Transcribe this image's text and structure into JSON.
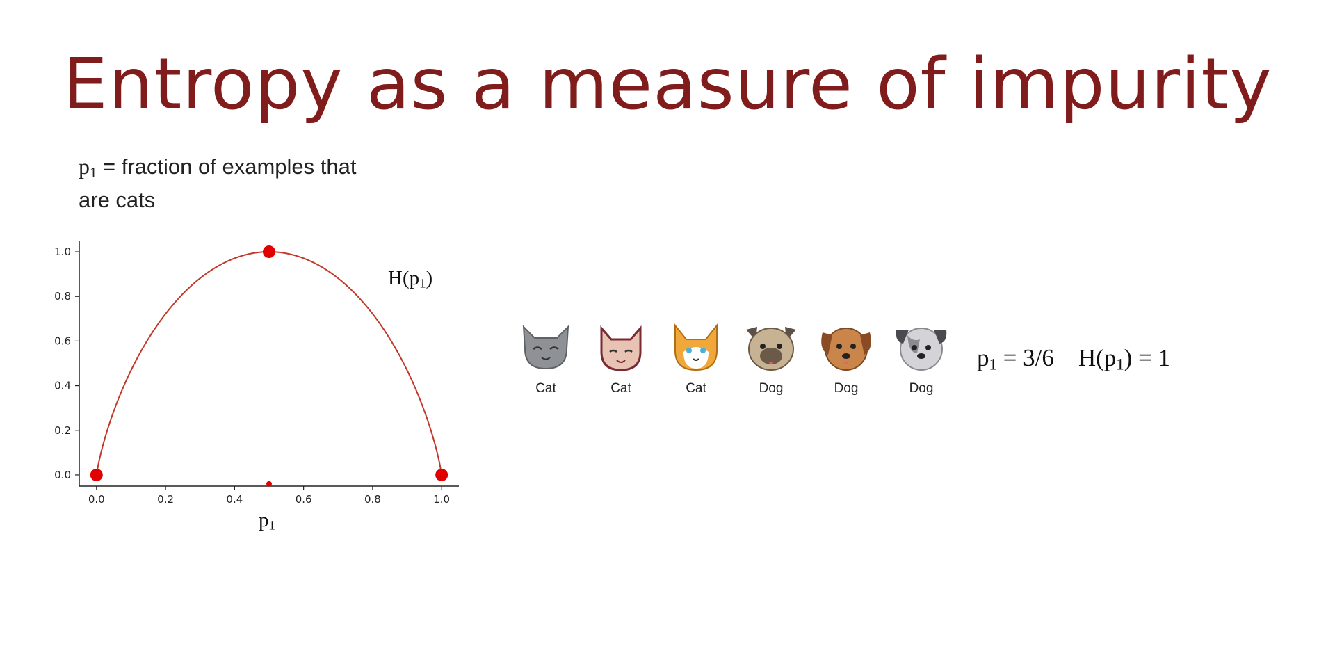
{
  "slide": {
    "title": "Entropy as a measure of impurity",
    "definition_symbol": "p",
    "definition_sub": "1",
    "definition_line1": "= fraction of examples that",
    "definition_line2": "are cats"
  },
  "chart_data": {
    "type": "line",
    "series": [
      {
        "x": [
          0.0,
          0.05,
          0.1,
          0.15,
          0.2,
          0.25,
          0.3,
          0.35,
          0.4,
          0.45,
          0.5,
          0.55,
          0.6,
          0.65,
          0.7,
          0.75,
          0.8,
          0.85,
          0.9,
          0.95,
          1.0
        ],
        "y": [
          0.0,
          0.286,
          0.469,
          0.61,
          0.722,
          0.811,
          0.881,
          0.934,
          0.971,
          0.993,
          1.0,
          0.993,
          0.971,
          0.934,
          0.881,
          0.811,
          0.722,
          0.61,
          0.469,
          0.286,
          0.0
        ],
        "color": "#c0392b"
      }
    ],
    "highlight_points": [
      {
        "x": 0.0,
        "y": 0.0
      },
      {
        "x": 0.5,
        "y": 1.0
      },
      {
        "x": 1.0,
        "y": 0.0
      },
      {
        "x": 0.5,
        "y": -0.04
      }
    ],
    "marker_color": "#e00000",
    "xlim": [
      -0.05,
      1.05
    ],
    "ylim": [
      -0.05,
      1.05
    ],
    "xticks": [
      "0.0",
      "0.2",
      "0.4",
      "0.6",
      "0.8",
      "1.0"
    ],
    "yticks": [
      "0.0",
      "0.2",
      "0.4",
      "0.6",
      "0.8",
      "1.0"
    ],
    "xlabel_symbol": "p",
    "xlabel_sub": "1",
    "curve_label_main": "H(p",
    "curve_label_sub": "1",
    "curve_label_end": ")"
  },
  "examples": [
    {
      "label": "Cat",
      "icon": "cat-gray-icon"
    },
    {
      "label": "Cat",
      "icon": "cat-pink-icon"
    },
    {
      "label": "Cat",
      "icon": "cat-orange-icon"
    },
    {
      "label": "Dog",
      "icon": "dog-pug-icon"
    },
    {
      "label": "Dog",
      "icon": "dog-brown-icon"
    },
    {
      "label": "Dog",
      "icon": "dog-gray-icon"
    }
  ],
  "formula": {
    "p_symbol": "p",
    "p_sub": "1",
    "p_value": "= 3/6",
    "h_main": "H(p",
    "h_sub": "1",
    "h_end": ") = 1"
  }
}
